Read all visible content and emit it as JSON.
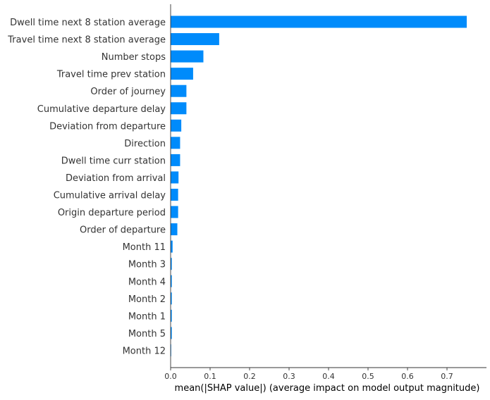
{
  "chart_data": {
    "type": "bar",
    "orientation": "horizontal",
    "categories": [
      "Dwell time next 8 station average",
      "Travel time next 8 station average",
      "Number stops",
      "Travel time prev station",
      "Order of journey",
      "Cumulative departure delay",
      "Deviation from departure",
      "Direction",
      "Dwell time curr station",
      "Deviation from arrival",
      "Cumulative arrival delay",
      "Origin departure period",
      "Order of departure",
      "Month 11",
      "Month 3",
      "Month 4",
      "Month 2",
      "Month 1",
      "Month 5",
      "Month 12"
    ],
    "values": [
      0.75,
      0.123,
      0.083,
      0.057,
      0.04,
      0.04,
      0.027,
      0.024,
      0.024,
      0.02,
      0.019,
      0.019,
      0.017,
      0.005,
      0.003,
      0.003,
      0.003,
      0.003,
      0.003,
      0.001
    ],
    "xlabel": "mean(|SHAP value|) (average impact on model output magnitude)",
    "ylabel": "",
    "title": "",
    "xlim": [
      0.0,
      0.8
    ],
    "xticks": [
      0.0,
      0.1,
      0.2,
      0.3,
      0.4,
      0.5,
      0.6,
      0.7
    ],
    "xtick_labels": [
      "0.0",
      "0.1",
      "0.2",
      "0.3",
      "0.4",
      "0.5",
      "0.6",
      "0.7"
    ],
    "grid": false,
    "legend": "none",
    "bar_color": "#008bfb",
    "axis_color": "#333333"
  }
}
